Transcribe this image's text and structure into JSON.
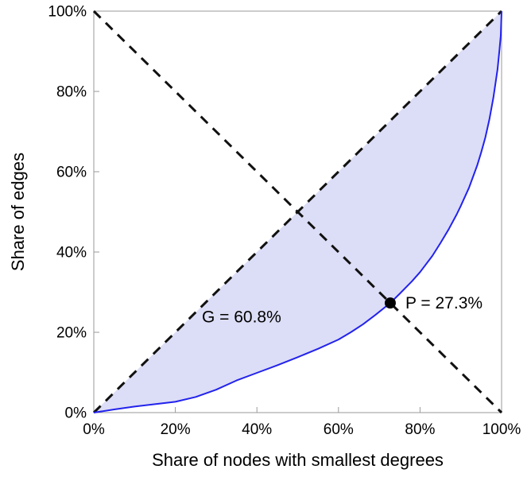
{
  "chart_data": {
    "type": "line",
    "title": "",
    "xlabel": "Share of nodes with smallest degrees",
    "ylabel": "Share of edges",
    "xlim": [
      0,
      100
    ],
    "ylim": [
      0,
      100
    ],
    "grid": false,
    "x_ticks": [
      0,
      20,
      40,
      60,
      80,
      100
    ],
    "y_ticks": [
      0,
      20,
      40,
      60,
      80,
      100
    ],
    "x_tick_labels": [
      "0%",
      "20%",
      "40%",
      "60%",
      "80%",
      "100%"
    ],
    "y_tick_labels": [
      "0%",
      "20%",
      "40%",
      "60%",
      "80%",
      "100%"
    ],
    "axis_color": "#9a9a9a",
    "text_color": "#000000",
    "series": [
      {
        "name": "lorenz-curve",
        "color": "#2222ee",
        "width": 2,
        "x": [
          0,
          5,
          10,
          15,
          20,
          25,
          30,
          35,
          40,
          45,
          50,
          55,
          60,
          63,
          66,
          69,
          72.7,
          75,
          78,
          80,
          83,
          85,
          87,
          89,
          90,
          92,
          94,
          95,
          96,
          97,
          98,
          99,
          99.5,
          99.8,
          100
        ],
        "y": [
          0,
          0.8,
          1.5,
          2.1,
          2.7,
          3.9,
          5.7,
          8.0,
          9.9,
          11.8,
          13.8,
          15.9,
          18.2,
          20.0,
          22.0,
          24.3,
          27.3,
          29.6,
          32.7,
          35.0,
          39.0,
          42.2,
          45.6,
          49.4,
          51.5,
          56.0,
          61.5,
          64.8,
          68.5,
          73.0,
          78.5,
          85.5,
          90.5,
          94.0,
          100
        ]
      }
    ],
    "reference_lines": [
      {
        "name": "equality-diagonal",
        "from": [
          0,
          0
        ],
        "to": [
          100,
          100
        ],
        "style": "dashed",
        "color": "#111111",
        "width": 3
      },
      {
        "name": "anti-diagonal",
        "from": [
          0,
          100
        ],
        "to": [
          100,
          0
        ],
        "style": "dashed",
        "color": "#111111",
        "width": 3
      }
    ],
    "shaded_region": {
      "between": "equality-diagonal and lorenz-curve",
      "fill": "#dcddf6"
    },
    "point": {
      "x": 72.7,
      "y": 27.3,
      "label": "P = 27.3%",
      "color": "#000000",
      "label_offset_x": 19,
      "label_offset_y": 7
    },
    "annotations": [
      {
        "name": "gini-label",
        "text": "G = 60.8%",
        "x": 26.5,
        "y": 22.5
      }
    ]
  }
}
